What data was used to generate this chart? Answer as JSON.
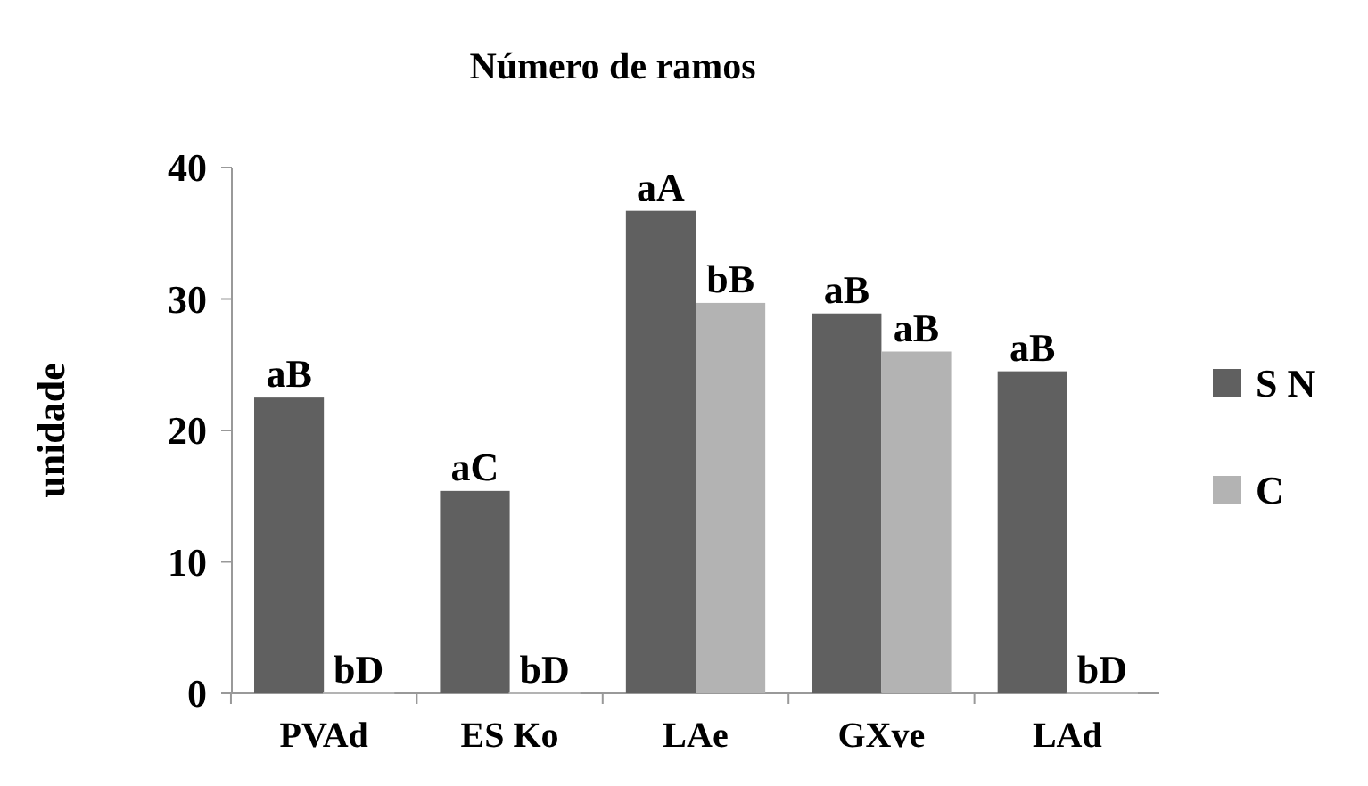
{
  "chart_data": {
    "type": "bar",
    "title": "Número de ramos",
    "ylabel": "unidade",
    "categories": [
      "PVAd",
      "ES Ko",
      "LAe",
      "GXve",
      "LAd"
    ],
    "ylim": [
      0,
      40
    ],
    "yticks": [
      0,
      10,
      20,
      30,
      40
    ],
    "grid": false,
    "legend": "right",
    "series": [
      {
        "name": "S N",
        "color": "#606060",
        "values": [
          22.5,
          15.4,
          36.7,
          28.9,
          24.5
        ],
        "value_labels": [
          "aB",
          "aC",
          "aA",
          "aB",
          "aB"
        ]
      },
      {
        "name": "C",
        "color": "#b3b3b3",
        "values": [
          0,
          0,
          29.7,
          26,
          0
        ],
        "value_labels": [
          "bD",
          "bD",
          "bB",
          "aB",
          "bD"
        ]
      }
    ]
  }
}
